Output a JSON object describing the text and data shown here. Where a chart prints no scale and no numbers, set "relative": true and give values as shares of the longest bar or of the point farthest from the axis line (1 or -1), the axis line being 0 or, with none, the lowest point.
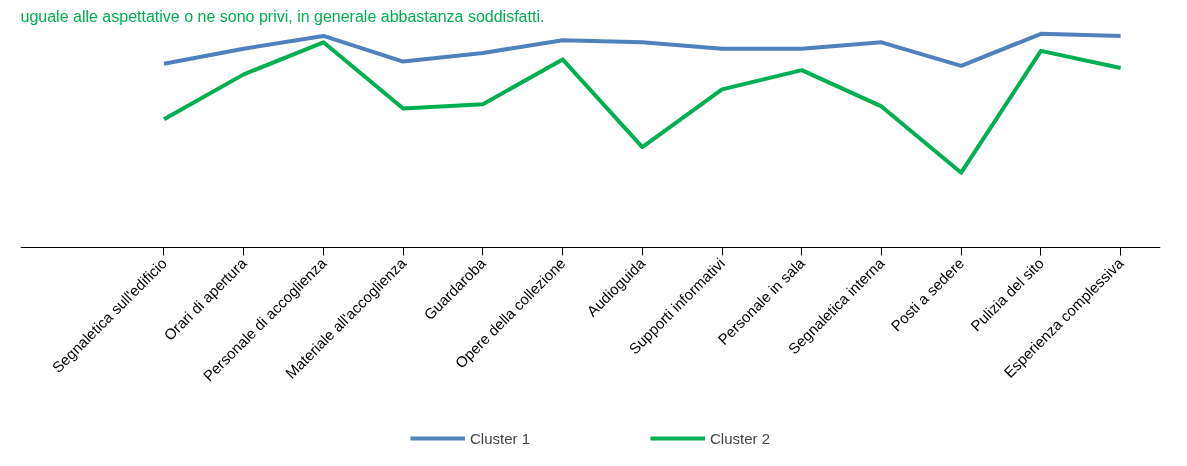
{
  "chart_data": {
    "type": "line",
    "relative": true,
    "legend": "bottom",
    "annotations": [
      "uguale alle aspettative o ne sono privi, in generale abbastanza soddisfatti."
    ],
    "categories": [
      "Segnaletica sull'edificio",
      "Orari di apertura",
      "Personale di accoglienza",
      "Materiale all'accoglienza",
      "Guardaroba",
      "Opere della collezione",
      "Audioguida",
      "Supporti informativi",
      "Personale in sala",
      "Segnaletica interna",
      "Posti a sedere",
      "Pulizia del sito",
      "Esperienza complessiva"
    ],
    "series": [
      {
        "name": "Cluster 1",
        "color": "#4f81bd",
        "values": [
          0.86,
          0.93,
          0.99,
          0.87,
          0.91,
          0.97,
          0.96,
          0.93,
          0.93,
          0.96,
          0.85,
          1.0,
          0.99
        ]
      },
      {
        "name": "Cluster 2",
        "color": "#00b050",
        "values": [
          0.6,
          0.81,
          0.96,
          0.65,
          0.67,
          0.88,
          0.47,
          0.74,
          0.83,
          0.66,
          0.35,
          0.92,
          0.84
        ]
      }
    ]
  }
}
